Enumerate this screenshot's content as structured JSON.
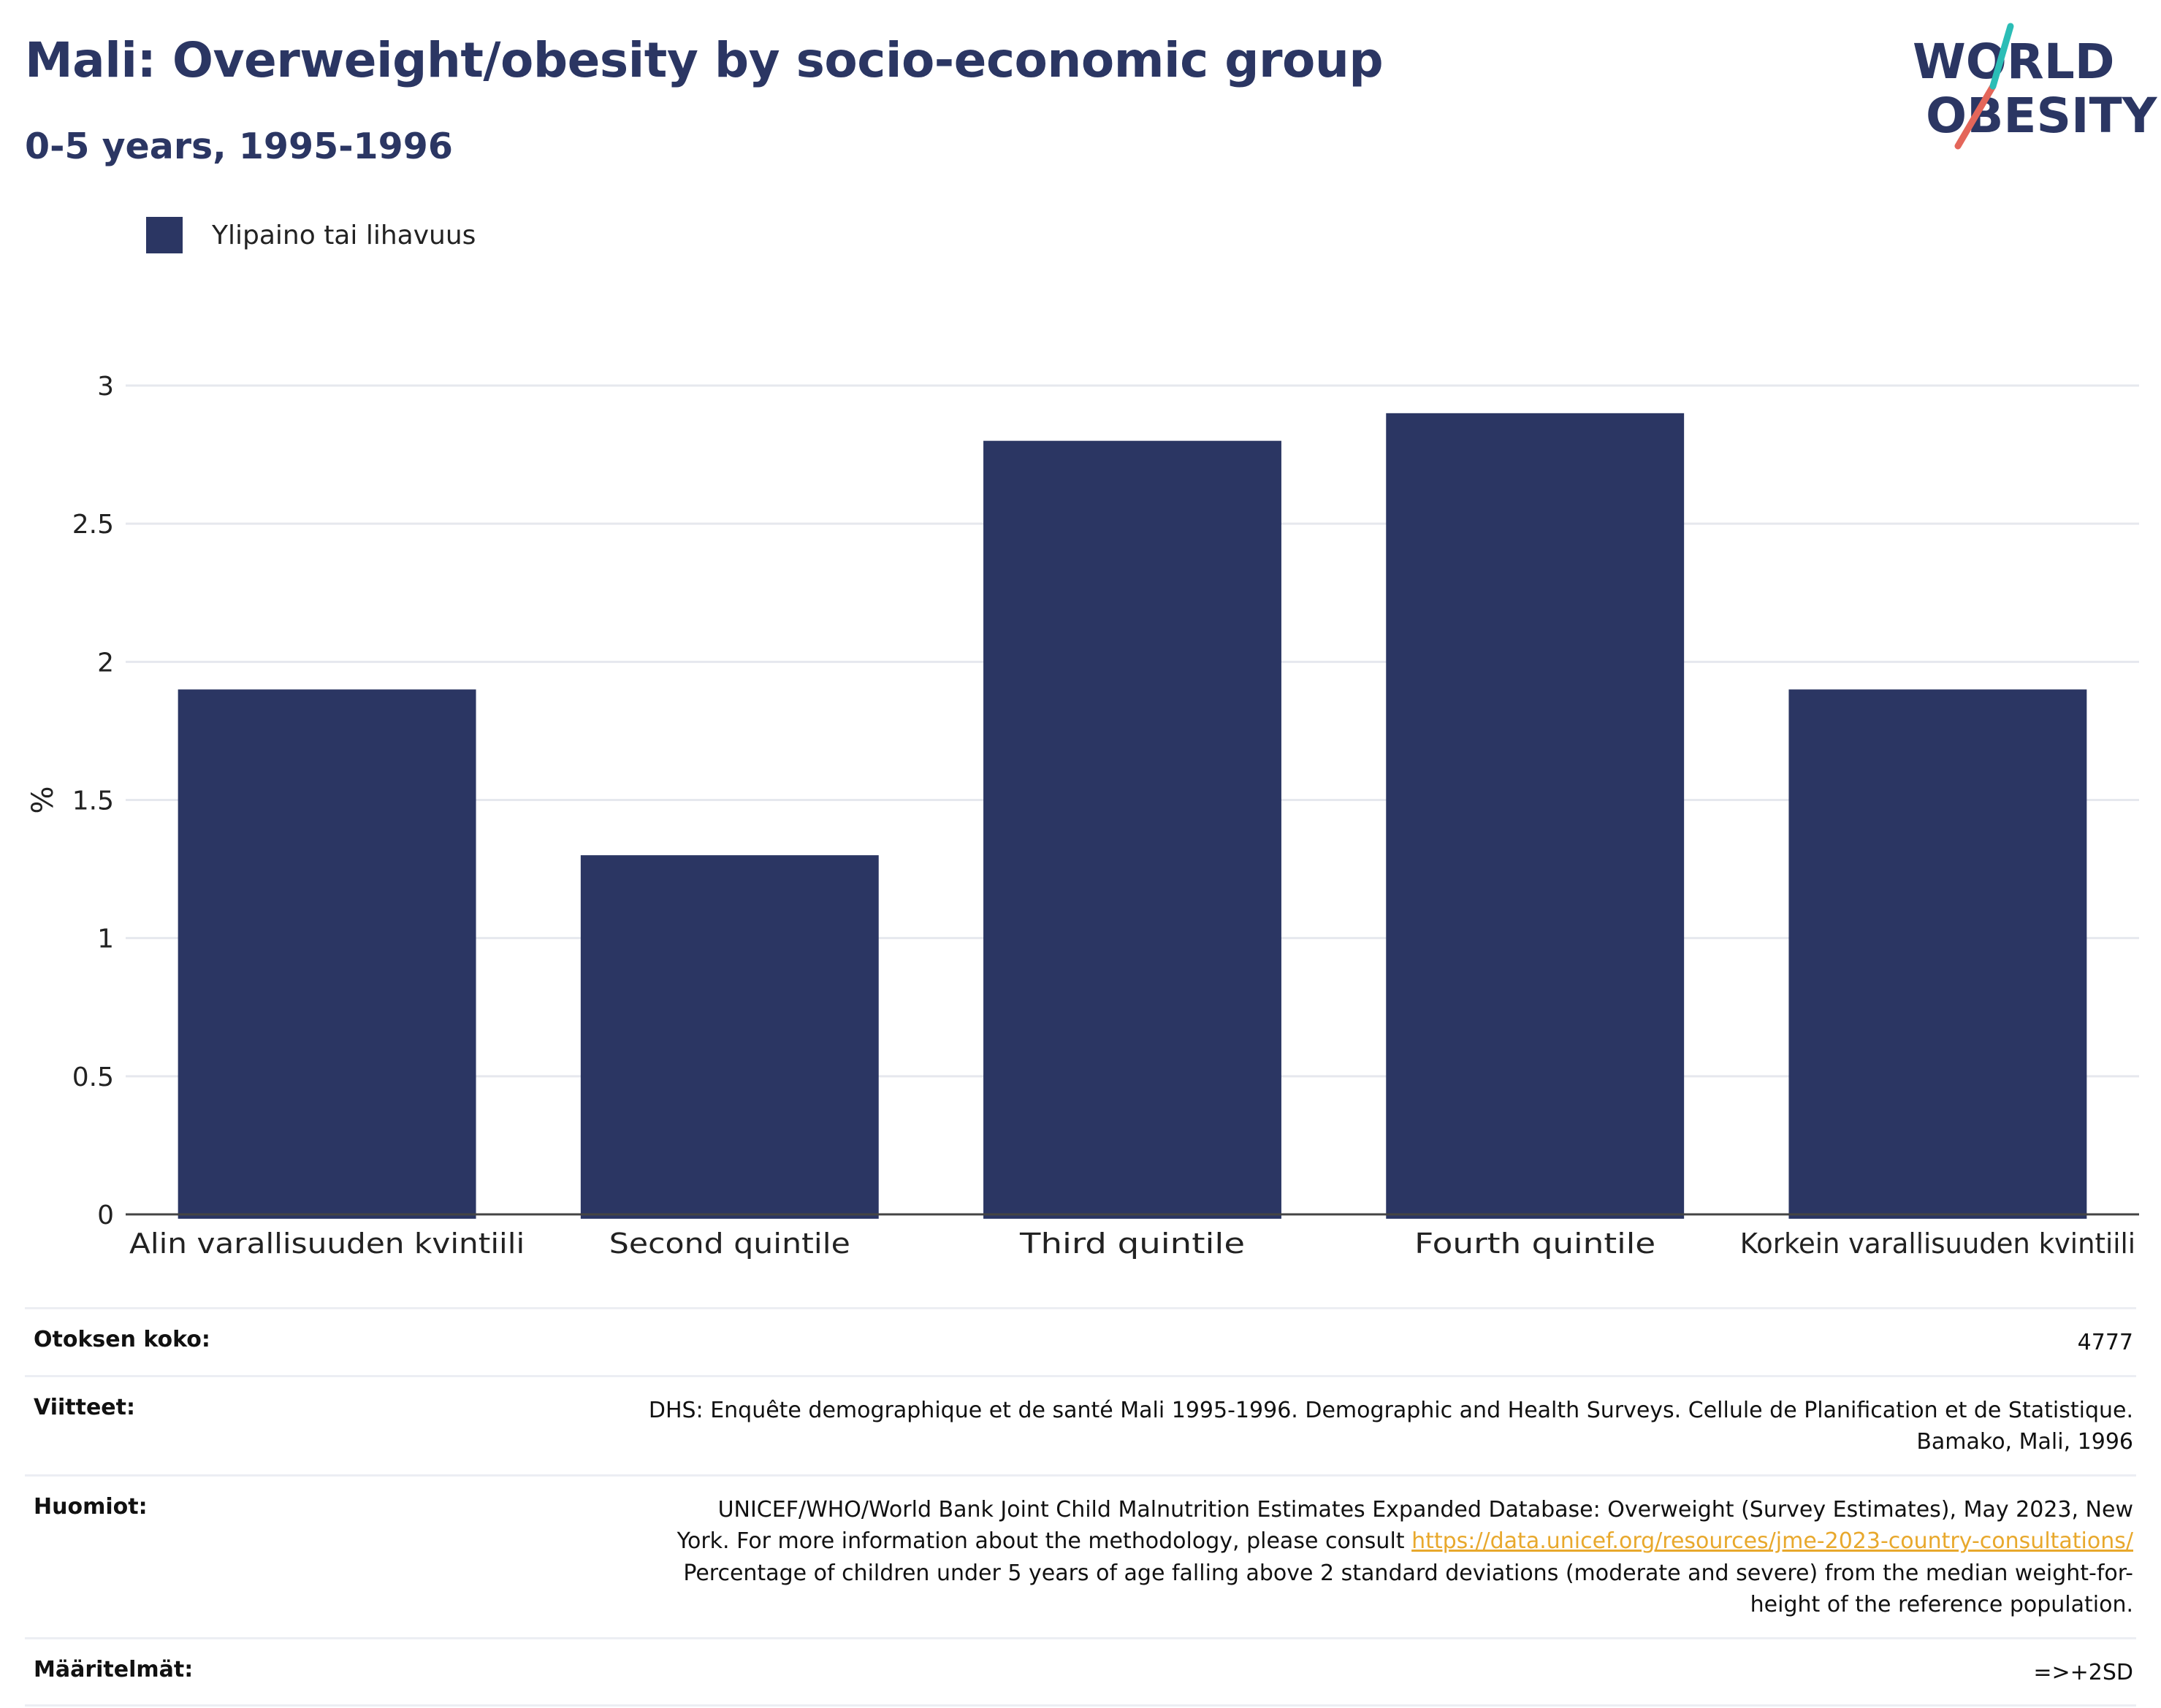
{
  "header": {
    "title": "Mali: Overweight/obesity by socio-economic group",
    "subtitle": "0-5 years, 1995-1996"
  },
  "logo": {
    "line1": "WORLD",
    "line2": "OBESITY"
  },
  "legend": {
    "label": "Ylipaino tai lihavuus"
  },
  "colors": {
    "bar": "#2b3663",
    "accent": "#e8a82c",
    "logo_slash_red": "#e4665a",
    "logo_slash_teal": "#2bbdb6"
  },
  "chart_data": {
    "type": "bar",
    "categories": [
      "Alin varallisuuden kvintiili",
      "Second quintile",
      "Third quintile",
      "Fourth quintile",
      "Korkein varallisuuden kvintiili"
    ],
    "series": [
      {
        "name": "Ylipaino tai lihavuus",
        "values": [
          1.9,
          1.3,
          2.8,
          2.9,
          1.9
        ]
      }
    ],
    "ylabel": "%",
    "ylim": [
      0,
      3
    ],
    "yticks": [
      0,
      0.5,
      1,
      1.5,
      2,
      2.5,
      3
    ],
    "ytick_labels": [
      "0",
      "0.5",
      "1",
      "1.5",
      "2",
      "2.5",
      "3"
    ],
    "grid": true,
    "legend_position": "top-left"
  },
  "info": {
    "sample_label": "Otoksen koko:",
    "sample_value": "4777",
    "refs_label": "Viitteet:",
    "refs_line1": "DHS: Enquête demographique et de santé Mali 1995-1996. Demographic and Health Surveys. Cellule de Planification et de Statistique.",
    "refs_line2": "Bamako, Mali, 1996",
    "notes_label": "Huomiot:",
    "notes_line1": "UNICEF/WHO/World Bank Joint Child Malnutrition Estimates Expanded Database: Overweight (Survey Estimates), May 2023, New",
    "notes_line2a": "York. For more information about the methodology, please consult ",
    "notes_link": "https://data.unicef.org/resources/jme-2023-country-consultations/",
    "notes_line3": "Percentage of children under 5 years of age falling above 2 standard deviations (moderate and severe) from the median weight-for-",
    "notes_line4": "height of the reference population.",
    "defs_label": "Määritelmät:",
    "defs_value": "=>+2SD"
  }
}
